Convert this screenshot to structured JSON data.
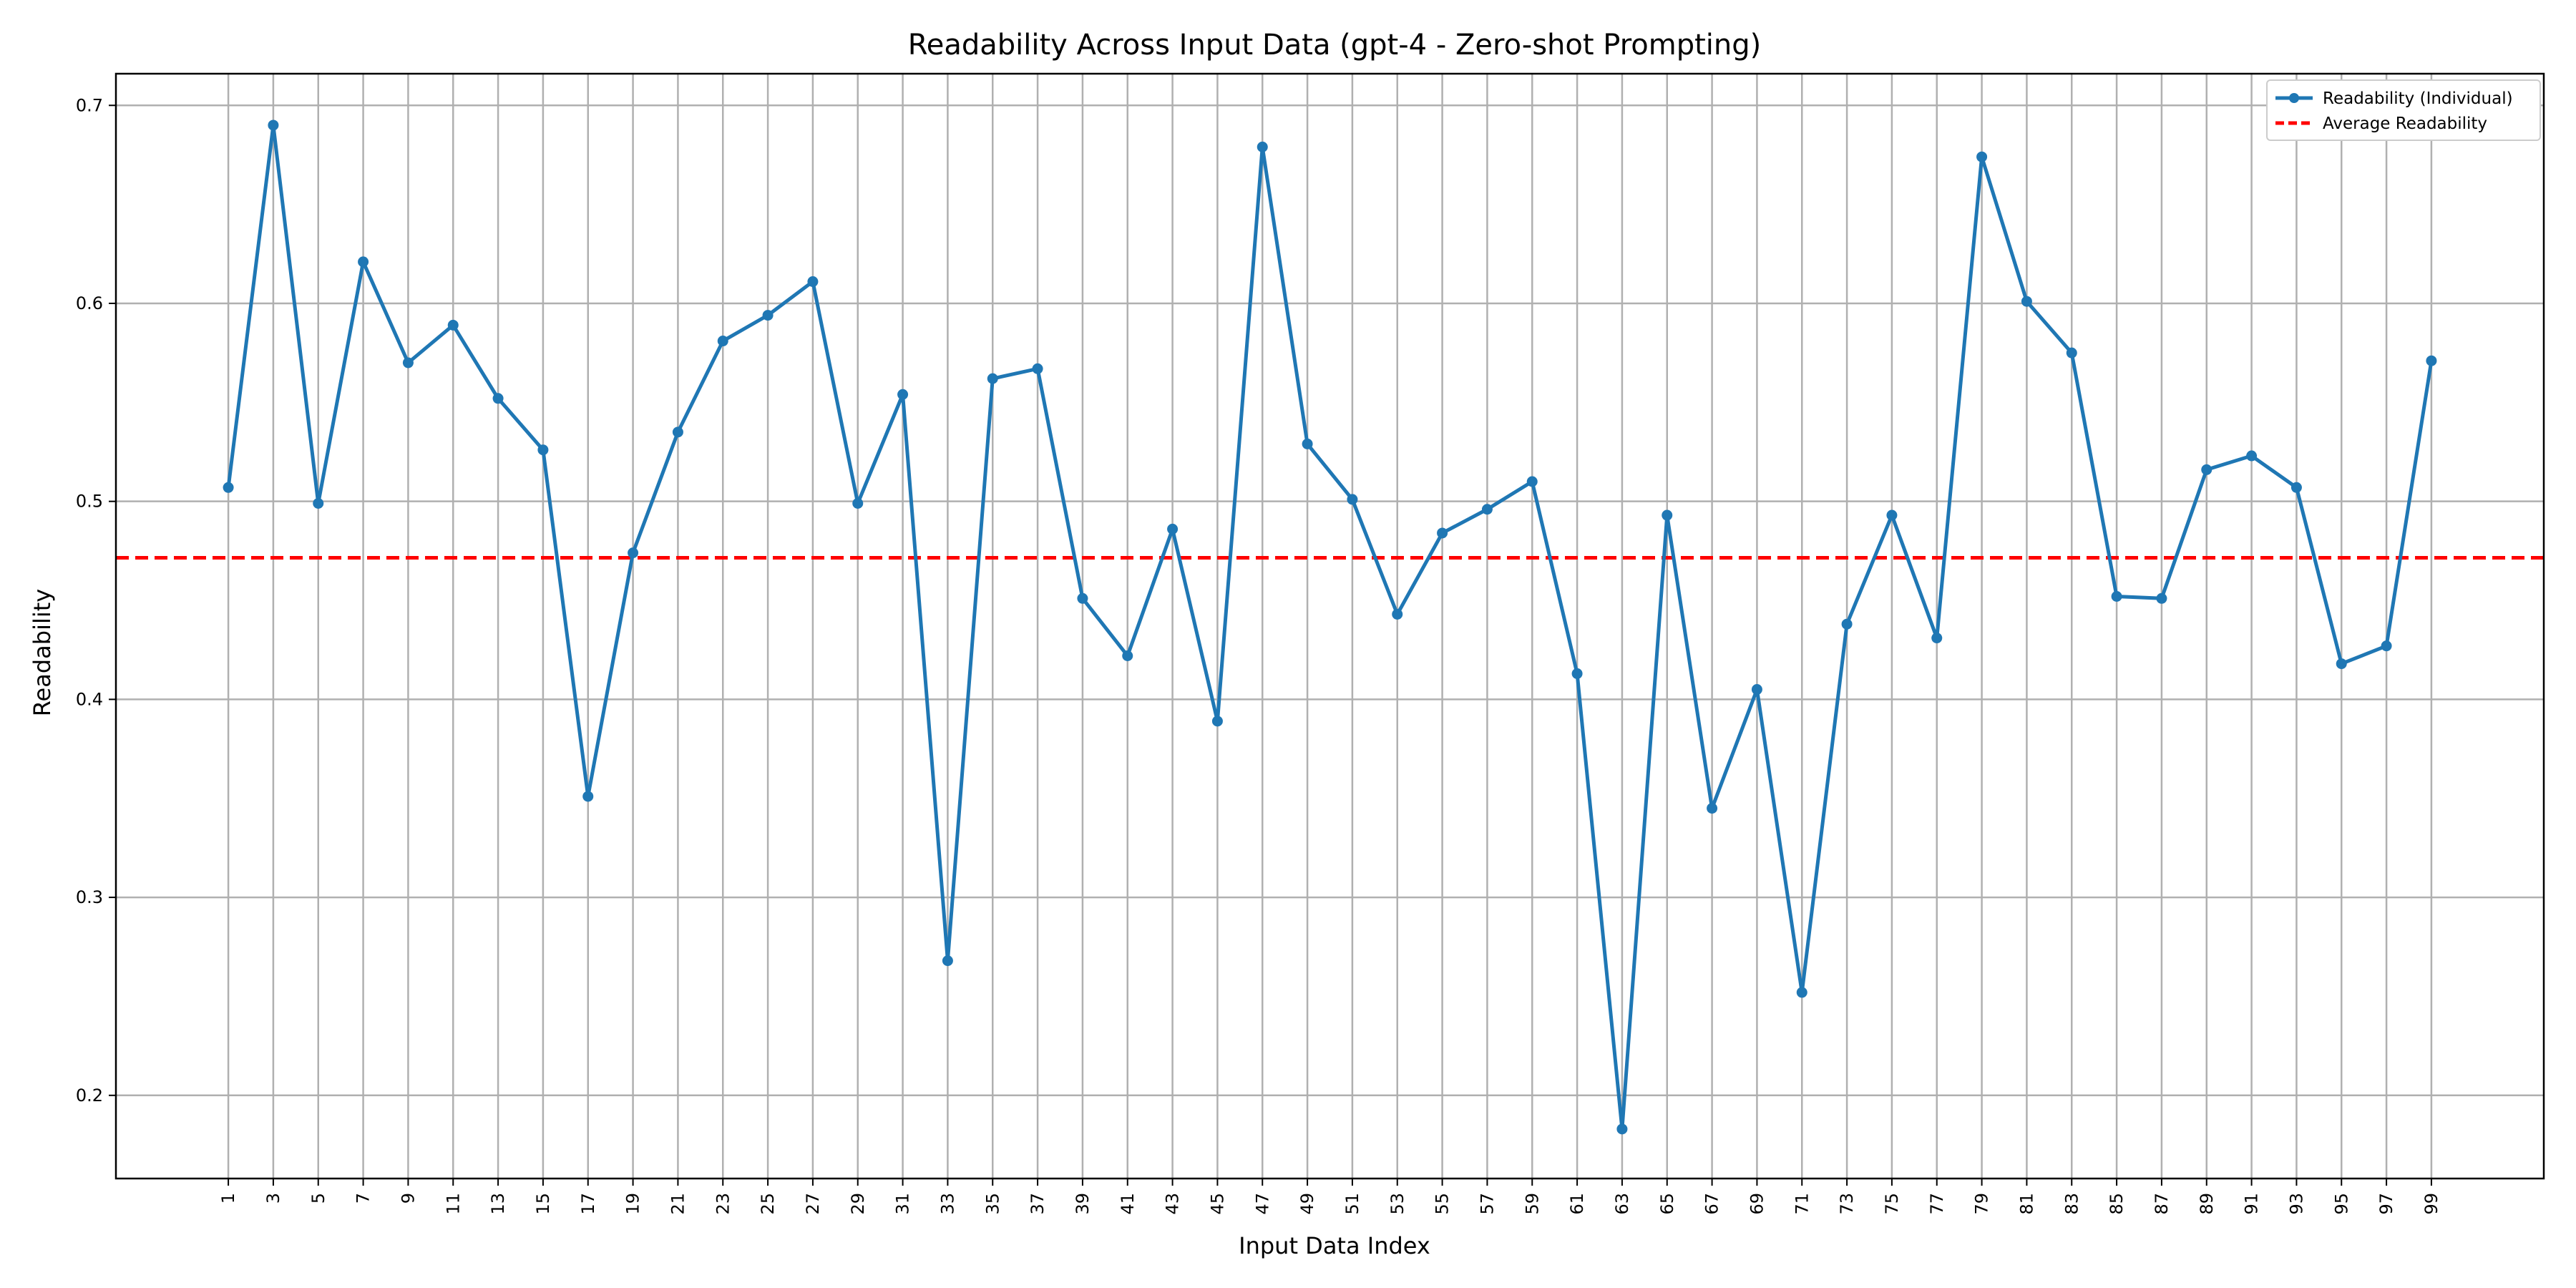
{
  "chart_data": {
    "type": "line",
    "title": "Readability Across Input Data (gpt-4 - Zero-shot Prompting)",
    "xlabel": "Input Data Index",
    "ylabel": "Readability",
    "x": [
      1,
      3,
      5,
      7,
      9,
      11,
      13,
      15,
      17,
      19,
      21,
      23,
      25,
      27,
      29,
      31,
      33,
      35,
      37,
      39,
      41,
      43,
      45,
      47,
      49,
      51,
      53,
      55,
      57,
      59,
      61,
      63,
      65,
      67,
      69,
      71,
      73,
      75,
      77,
      79,
      81,
      83,
      85,
      87,
      89,
      91,
      93,
      95,
      97,
      99
    ],
    "xlim": [
      -4,
      104
    ],
    "ylim": [
      0.158,
      0.716
    ],
    "yticks": [
      0.2,
      0.3,
      0.4,
      0.5,
      0.6,
      0.7
    ],
    "ytick_labels": [
      "0.2",
      "0.3",
      "0.4",
      "0.5",
      "0.6",
      "0.7"
    ],
    "xtick_labels": [
      "1",
      "3",
      "5",
      "7",
      "9",
      "11",
      "13",
      "15",
      "17",
      "19",
      "21",
      "23",
      "25",
      "27",
      "29",
      "31",
      "33",
      "35",
      "37",
      "39",
      "41",
      "43",
      "45",
      "47",
      "49",
      "51",
      "53",
      "55",
      "57",
      "59",
      "61",
      "63",
      "65",
      "67",
      "69",
      "71",
      "73",
      "75",
      "77",
      "79",
      "81",
      "83",
      "85",
      "87",
      "89",
      "91",
      "93",
      "95",
      "97",
      "99"
    ],
    "grid": true,
    "legend_position": "top-right",
    "series": [
      {
        "name": "Readability (Individual)",
        "color": "#1f77b4",
        "style": "solid-with-markers",
        "values": [
          0.507,
          0.69,
          0.499,
          0.621,
          0.57,
          0.589,
          0.552,
          0.526,
          0.351,
          0.474,
          0.535,
          0.581,
          0.594,
          0.611,
          0.499,
          0.554,
          0.268,
          0.562,
          0.567,
          0.451,
          0.422,
          0.486,
          0.389,
          0.679,
          0.529,
          0.501,
          0.443,
          0.484,
          0.496,
          0.51,
          0.413,
          0.183,
          0.493,
          0.345,
          0.405,
          0.252,
          0.438,
          0.493,
          0.431,
          0.674,
          0.601,
          0.575,
          0.452,
          0.451,
          0.516,
          0.523,
          0.507,
          0.418,
          0.427,
          0.571
        ]
      }
    ],
    "average": {
      "name": "Average Readability",
      "color": "#ff0000",
      "style": "dashed",
      "value": 0.4715
    }
  }
}
